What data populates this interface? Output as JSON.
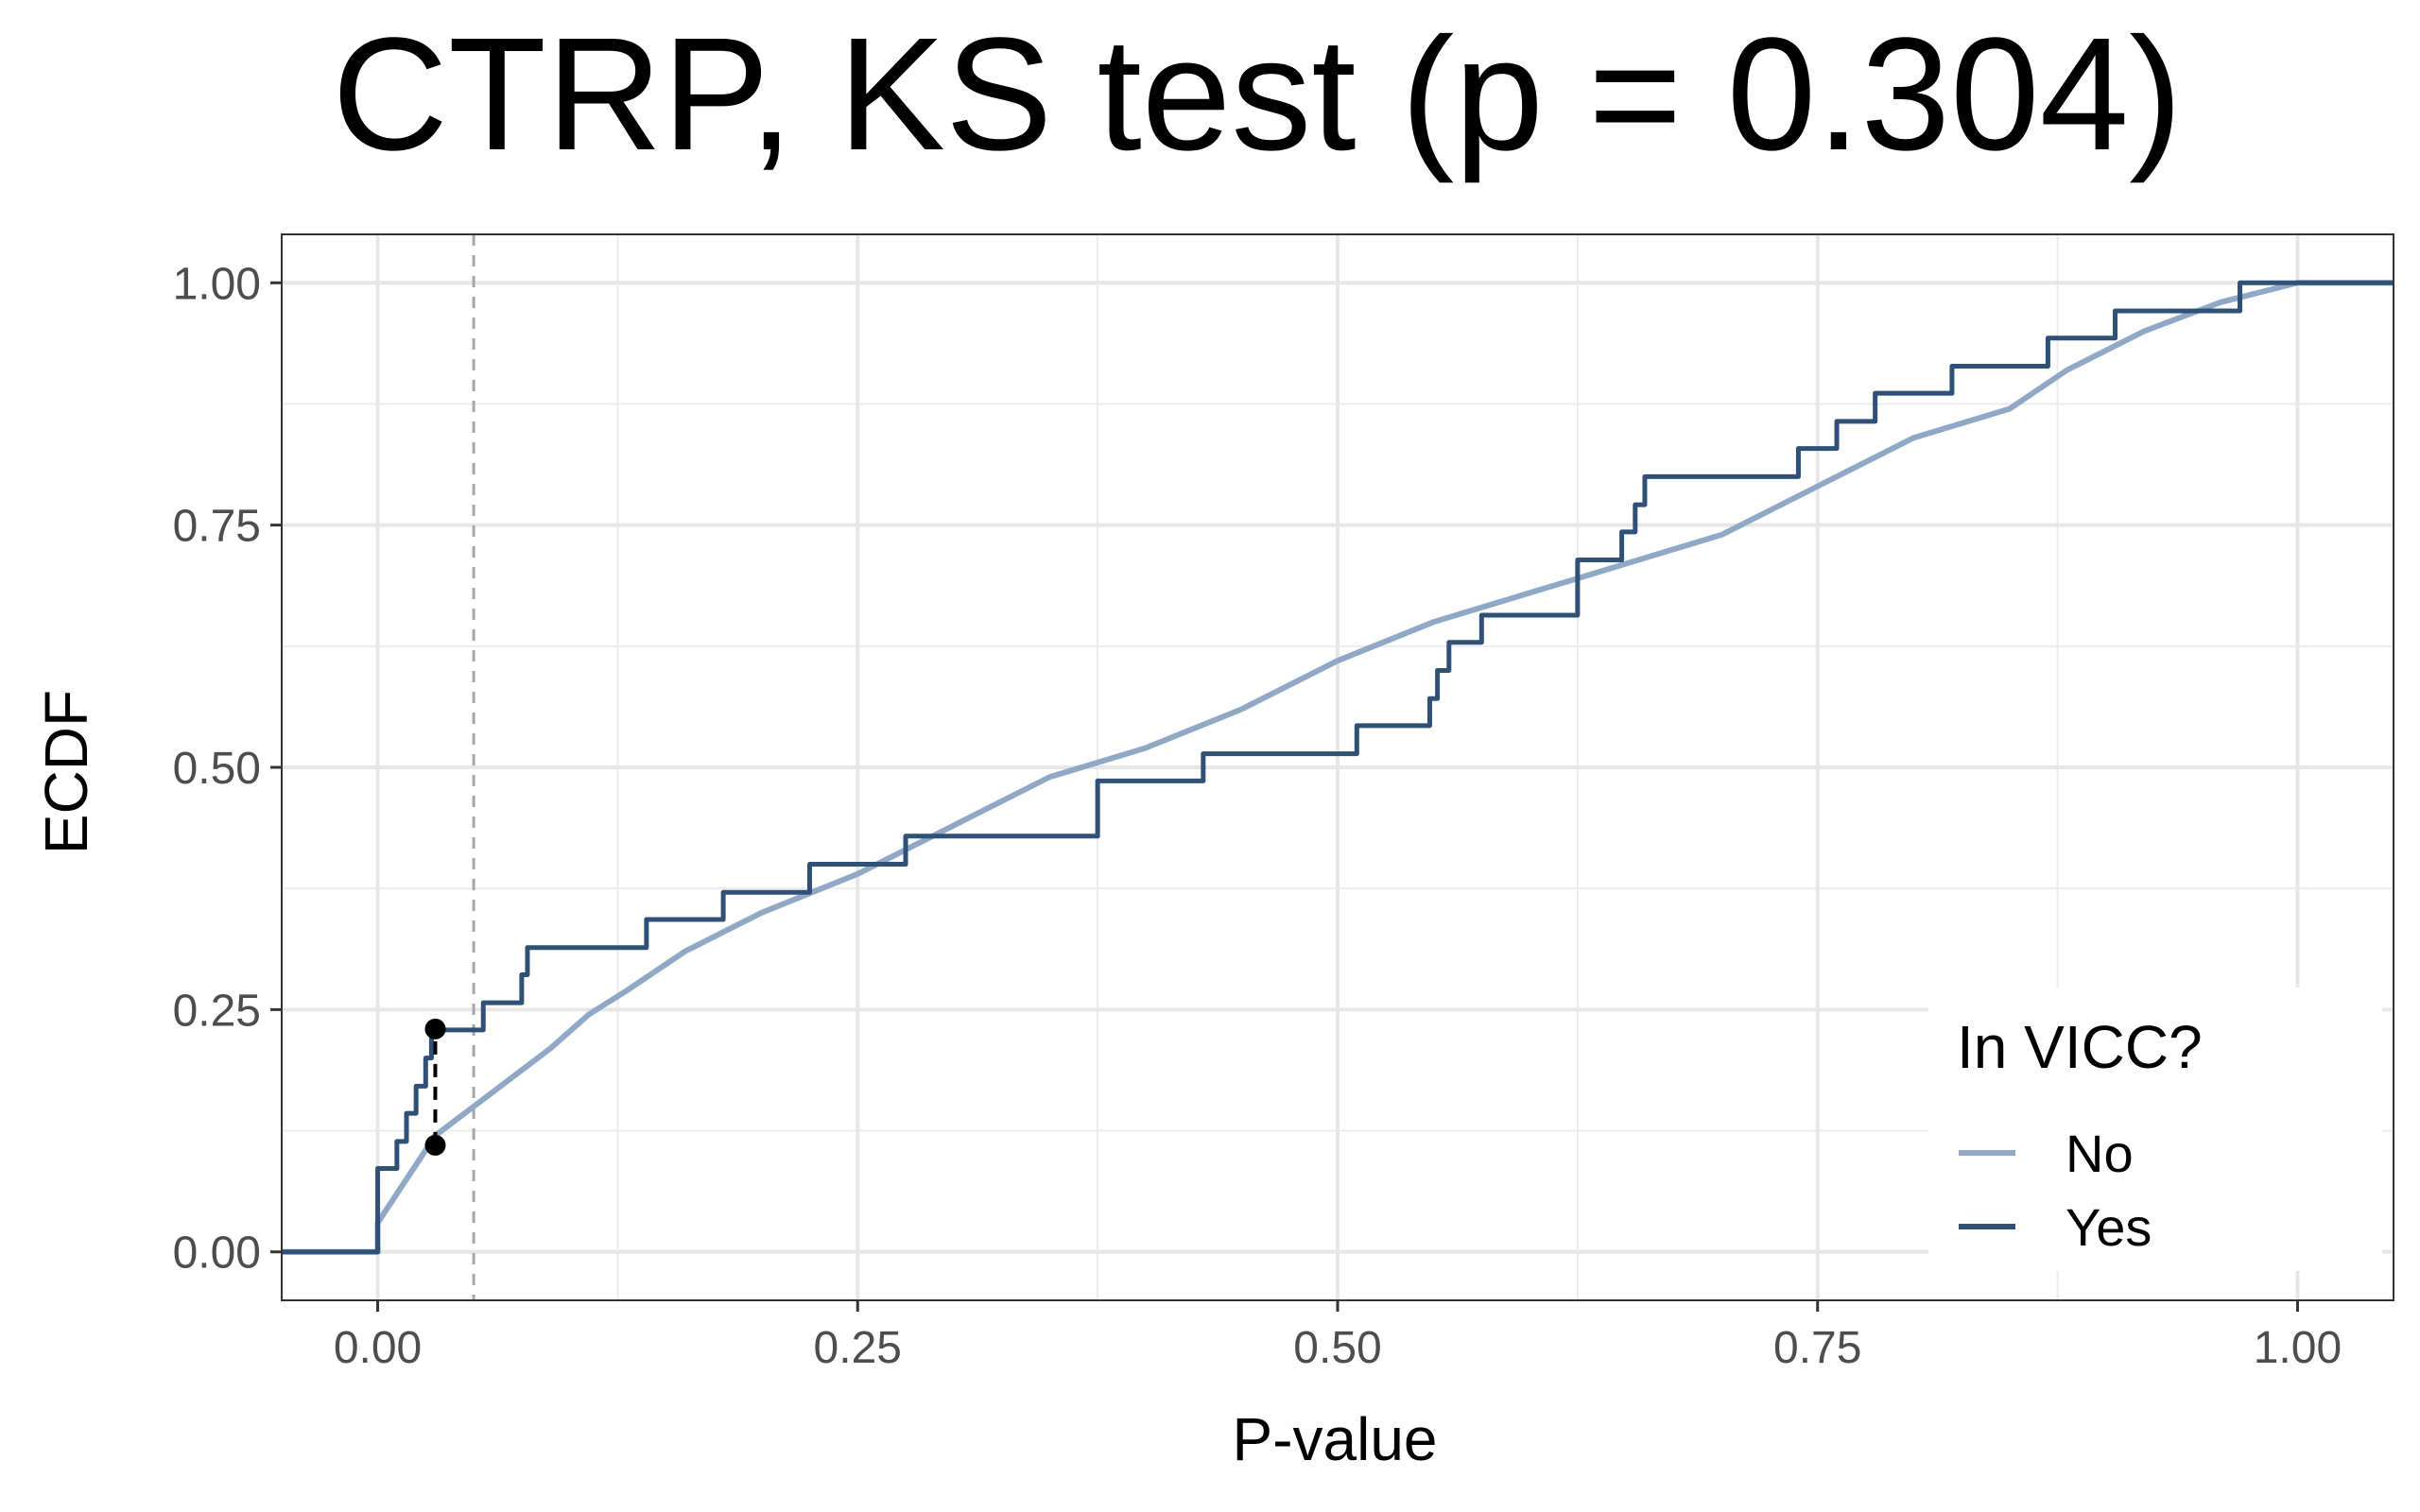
{
  "chart_data": {
    "type": "line",
    "title": "CTRP, KS test (p = 0.304)",
    "xlabel": "P-value",
    "ylabel": "ECDF",
    "xlim": [
      -0.05,
      1.05
    ],
    "ylim": [
      -0.05,
      1.05
    ],
    "x_ticks": [
      "0.00",
      "0.25",
      "0.50",
      "0.75",
      "1.00"
    ],
    "y_ticks": [
      "0.00",
      "0.25",
      "0.50",
      "0.75",
      "1.00"
    ],
    "grid": true,
    "legend": {
      "title": "In VICC?",
      "placement": "bottom-right"
    },
    "reference_line": {
      "x": 0.05,
      "style": "dashed",
      "color": "#a6a6a6"
    },
    "ks_statistic_marker": {
      "x": 0.03,
      "y_low": 0.11,
      "y_high": 0.23,
      "color": "#000000"
    },
    "series": [
      {
        "name": "No",
        "color": "#8fa8c6",
        "step": false,
        "points": [
          [
            -0.05,
            0.0
          ],
          [
            0.0,
            0.0
          ],
          [
            0.0,
            0.03
          ],
          [
            0.01,
            0.06
          ],
          [
            0.02,
            0.09
          ],
          [
            0.03,
            0.12
          ],
          [
            0.05,
            0.15
          ],
          [
            0.07,
            0.18
          ],
          [
            0.09,
            0.21
          ],
          [
            0.11,
            0.245
          ],
          [
            0.13,
            0.27
          ],
          [
            0.16,
            0.31
          ],
          [
            0.2,
            0.35
          ],
          [
            0.25,
            0.39
          ],
          [
            0.3,
            0.44
          ],
          [
            0.35,
            0.49
          ],
          [
            0.4,
            0.52
          ],
          [
            0.45,
            0.56
          ],
          [
            0.5,
            0.61
          ],
          [
            0.55,
            0.65
          ],
          [
            0.6,
            0.68
          ],
          [
            0.65,
            0.71
          ],
          [
            0.7,
            0.74
          ],
          [
            0.75,
            0.79
          ],
          [
            0.8,
            0.84
          ],
          [
            0.85,
            0.87
          ],
          [
            0.88,
            0.91
          ],
          [
            0.92,
            0.95
          ],
          [
            0.96,
            0.98
          ],
          [
            1.0,
            1.0
          ],
          [
            1.05,
            1.0
          ]
        ]
      },
      {
        "name": "Yes",
        "color": "#2f5077",
        "step": true,
        "points": [
          [
            -0.05,
            0.0
          ],
          [
            0.0,
            0.0
          ],
          [
            0.0,
            0.086
          ],
          [
            0.01,
            0.114
          ],
          [
            0.015,
            0.143
          ],
          [
            0.02,
            0.171
          ],
          [
            0.025,
            0.2
          ],
          [
            0.028,
            0.229
          ],
          [
            0.055,
            0.257
          ],
          [
            0.075,
            0.286
          ],
          [
            0.078,
            0.314
          ],
          [
            0.14,
            0.343
          ],
          [
            0.18,
            0.371
          ],
          [
            0.225,
            0.4
          ],
          [
            0.275,
            0.429
          ],
          [
            0.375,
            0.486
          ],
          [
            0.43,
            0.514
          ],
          [
            0.51,
            0.543
          ],
          [
            0.548,
            0.571
          ],
          [
            0.552,
            0.6
          ],
          [
            0.558,
            0.629
          ],
          [
            0.575,
            0.657
          ],
          [
            0.625,
            0.714
          ],
          [
            0.648,
            0.743
          ],
          [
            0.655,
            0.771
          ],
          [
            0.66,
            0.8
          ],
          [
            0.74,
            0.829
          ],
          [
            0.76,
            0.857
          ],
          [
            0.78,
            0.886
          ],
          [
            0.82,
            0.914
          ],
          [
            0.87,
            0.943
          ],
          [
            0.905,
            0.971
          ],
          [
            0.97,
            1.0
          ],
          [
            1.05,
            1.0
          ]
        ]
      }
    ]
  }
}
